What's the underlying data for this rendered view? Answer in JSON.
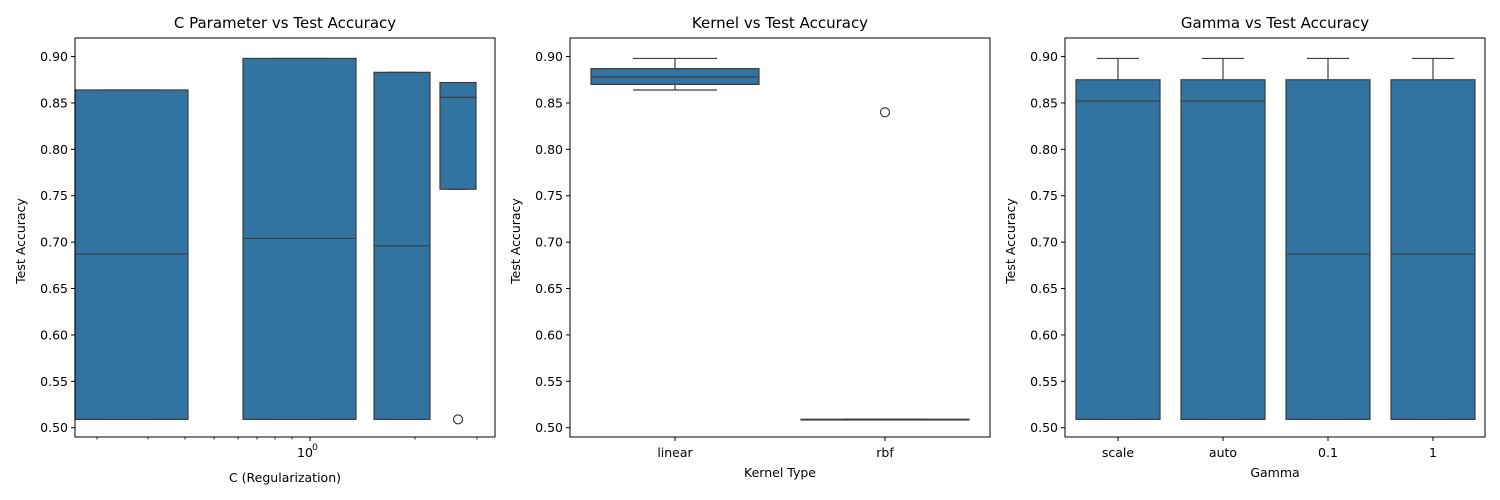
{
  "figure": {
    "box_color": "#3274a1",
    "line_color": "#3d3d3d"
  },
  "chart_data": [
    {
      "type": "box",
      "title": "C Parameter vs Test Accuracy",
      "xlabel": "C (Regularization)",
      "ylabel": "Test Accuracy",
      "xscale": "log",
      "x_tick_labels": [
        "10^0"
      ],
      "ylim": [
        0.49,
        0.92
      ],
      "y_ticks": [
        "0.50",
        "0.55",
        "0.60",
        "0.65",
        "0.70",
        "0.75",
        "0.80",
        "0.85",
        "0.90"
      ],
      "grid": false,
      "boxes": [
        {
          "q1": 0.509,
          "median": 0.687,
          "q3": 0.864,
          "whislo": 0.509,
          "whishi": 0.864,
          "outliers": []
        },
        {
          "q1": 0.509,
          "median": 0.704,
          "q3": 0.898,
          "whislo": 0.509,
          "whishi": 0.898,
          "outliers": []
        },
        {
          "q1": 0.509,
          "median": 0.696,
          "q3": 0.883,
          "whislo": 0.509,
          "whishi": 0.883,
          "outliers": []
        },
        {
          "q1": 0.757,
          "median": 0.856,
          "q3": 0.872,
          "whislo": 0.757,
          "whishi": 0.872,
          "outliers": [
            0.509
          ]
        }
      ]
    },
    {
      "type": "box",
      "title": "Kernel vs Test Accuracy",
      "xlabel": "Kernel Type",
      "ylabel": "Test Accuracy",
      "categories": [
        "linear",
        "rbf"
      ],
      "ylim": [
        0.49,
        0.92
      ],
      "y_ticks": [
        "0.50",
        "0.55",
        "0.60",
        "0.65",
        "0.70",
        "0.75",
        "0.80",
        "0.85",
        "0.90"
      ],
      "grid": false,
      "boxes": [
        {
          "q1": 0.87,
          "median": 0.878,
          "q3": 0.887,
          "whislo": 0.864,
          "whishi": 0.898,
          "outliers": []
        },
        {
          "q1": 0.509,
          "median": 0.509,
          "q3": 0.509,
          "whislo": 0.509,
          "whishi": 0.509,
          "outliers": [
            0.84
          ]
        }
      ]
    },
    {
      "type": "box",
      "title": "Gamma vs Test Accuracy",
      "xlabel": "Gamma",
      "ylabel": "Test Accuracy",
      "categories": [
        "scale",
        "auto",
        "0.1",
        "1"
      ],
      "ylim": [
        0.49,
        0.92
      ],
      "y_ticks": [
        "0.50",
        "0.55",
        "0.60",
        "0.65",
        "0.70",
        "0.75",
        "0.80",
        "0.85",
        "0.90"
      ],
      "grid": false,
      "boxes": [
        {
          "q1": 0.509,
          "median": 0.852,
          "q3": 0.875,
          "whislo": 0.509,
          "whishi": 0.898,
          "outliers": []
        },
        {
          "q1": 0.509,
          "median": 0.852,
          "q3": 0.875,
          "whislo": 0.509,
          "whishi": 0.898,
          "outliers": []
        },
        {
          "q1": 0.509,
          "median": 0.687,
          "q3": 0.875,
          "whislo": 0.509,
          "whishi": 0.898,
          "outliers": []
        },
        {
          "q1": 0.509,
          "median": 0.687,
          "q3": 0.875,
          "whislo": 0.509,
          "whishi": 0.898,
          "outliers": []
        }
      ]
    }
  ]
}
